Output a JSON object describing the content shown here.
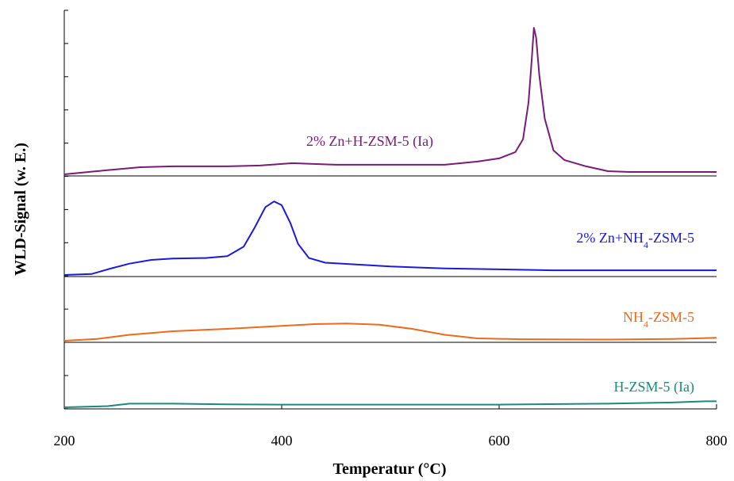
{
  "chart_data": {
    "type": "line",
    "title": "",
    "xlabel": "Temperatur (°C)",
    "ylabel": "WLD-Signal (w. E.)",
    "xlim": [
      200,
      800
    ],
    "x_ticks": [
      "200",
      "400",
      "600",
      "800"
    ],
    "grid": false,
    "legend": "inline labels",
    "panels": [
      {
        "name": "2% Zn+H-ZSM-5 (Ia)",
        "color": "#7b1a78",
        "points": [
          [
            200,
            0.0
          ],
          [
            230,
            0.02
          ],
          [
            270,
            0.045
          ],
          [
            300,
            0.05
          ],
          [
            350,
            0.05
          ],
          [
            380,
            0.055
          ],
          [
            410,
            0.07
          ],
          [
            450,
            0.06
          ],
          [
            500,
            0.06
          ],
          [
            550,
            0.06
          ],
          [
            580,
            0.08
          ],
          [
            600,
            0.1
          ],
          [
            615,
            0.14
          ],
          [
            622,
            0.22
          ],
          [
            627,
            0.45
          ],
          [
            630,
            0.72
          ],
          [
            632,
            0.92
          ],
          [
            634,
            0.86
          ],
          [
            637,
            0.62
          ],
          [
            642,
            0.35
          ],
          [
            650,
            0.15
          ],
          [
            660,
            0.09
          ],
          [
            680,
            0.05
          ],
          [
            700,
            0.02
          ],
          [
            720,
            0.015
          ],
          [
            760,
            0.015
          ],
          [
            800,
            0.015
          ]
        ]
      },
      {
        "name": "2% Zn+NH4-ZSM-5",
        "color": "#1a1adb",
        "points": [
          [
            200,
            0.0
          ],
          [
            225,
            0.01
          ],
          [
            240,
            0.06
          ],
          [
            260,
            0.12
          ],
          [
            280,
            0.16
          ],
          [
            300,
            0.175
          ],
          [
            330,
            0.18
          ],
          [
            350,
            0.2
          ],
          [
            365,
            0.3
          ],
          [
            375,
            0.5
          ],
          [
            385,
            0.72
          ],
          [
            393,
            0.78
          ],
          [
            400,
            0.74
          ],
          [
            408,
            0.55
          ],
          [
            415,
            0.33
          ],
          [
            425,
            0.18
          ],
          [
            440,
            0.13
          ],
          [
            470,
            0.11
          ],
          [
            500,
            0.09
          ],
          [
            550,
            0.07
          ],
          [
            600,
            0.06
          ],
          [
            650,
            0.05
          ],
          [
            700,
            0.05
          ],
          [
            750,
            0.05
          ],
          [
            800,
            0.05
          ]
        ]
      },
      {
        "name": "NH4-ZSM-5",
        "color": "#ef6a1a",
        "points": [
          [
            200,
            0.0
          ],
          [
            230,
            0.03
          ],
          [
            260,
            0.1
          ],
          [
            300,
            0.16
          ],
          [
            350,
            0.2
          ],
          [
            400,
            0.25
          ],
          [
            430,
            0.28
          ],
          [
            460,
            0.29
          ],
          [
            490,
            0.27
          ],
          [
            520,
            0.2
          ],
          [
            550,
            0.1
          ],
          [
            580,
            0.04
          ],
          [
            620,
            0.025
          ],
          [
            700,
            0.02
          ],
          [
            760,
            0.03
          ],
          [
            800,
            0.05
          ]
        ]
      },
      {
        "name": "H-ZSM-5 (Ia)",
        "color": "#1a8a7a",
        "points": [
          [
            200,
            0.0
          ],
          [
            240,
            0.02
          ],
          [
            260,
            0.06
          ],
          [
            300,
            0.06
          ],
          [
            350,
            0.05
          ],
          [
            400,
            0.045
          ],
          [
            500,
            0.045
          ],
          [
            600,
            0.045
          ],
          [
            700,
            0.06
          ],
          [
            760,
            0.08
          ],
          [
            790,
            0.1
          ],
          [
            800,
            0.1
          ]
        ]
      }
    ]
  }
}
